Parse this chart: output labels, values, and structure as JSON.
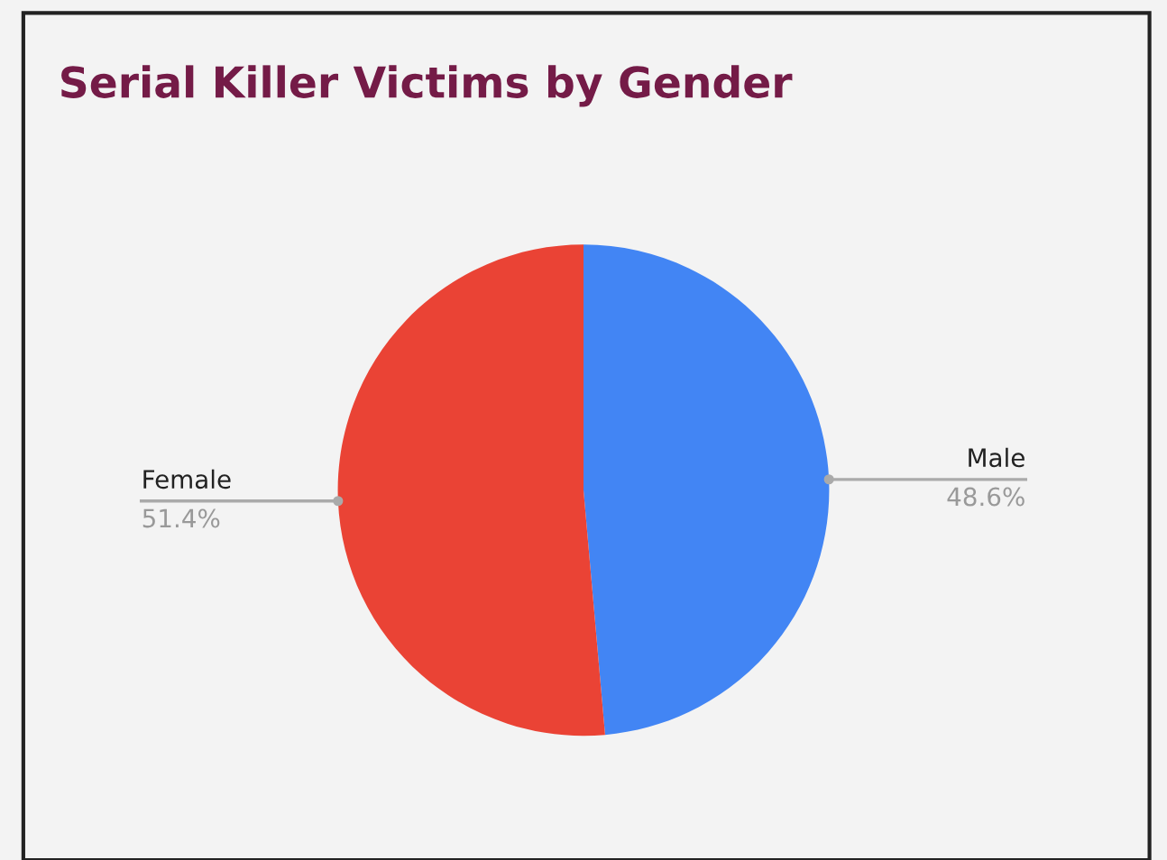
{
  "chart_data": {
    "type": "pie",
    "title": "Serial Killer Victims by Gender",
    "categories": [
      "Male",
      "Female"
    ],
    "values": [
      48.6,
      51.4
    ],
    "colors": [
      "#4285f4",
      "#ea4335"
    ],
    "value_labels": [
      "48.6%",
      "51.4%"
    ],
    "legend": false
  }
}
